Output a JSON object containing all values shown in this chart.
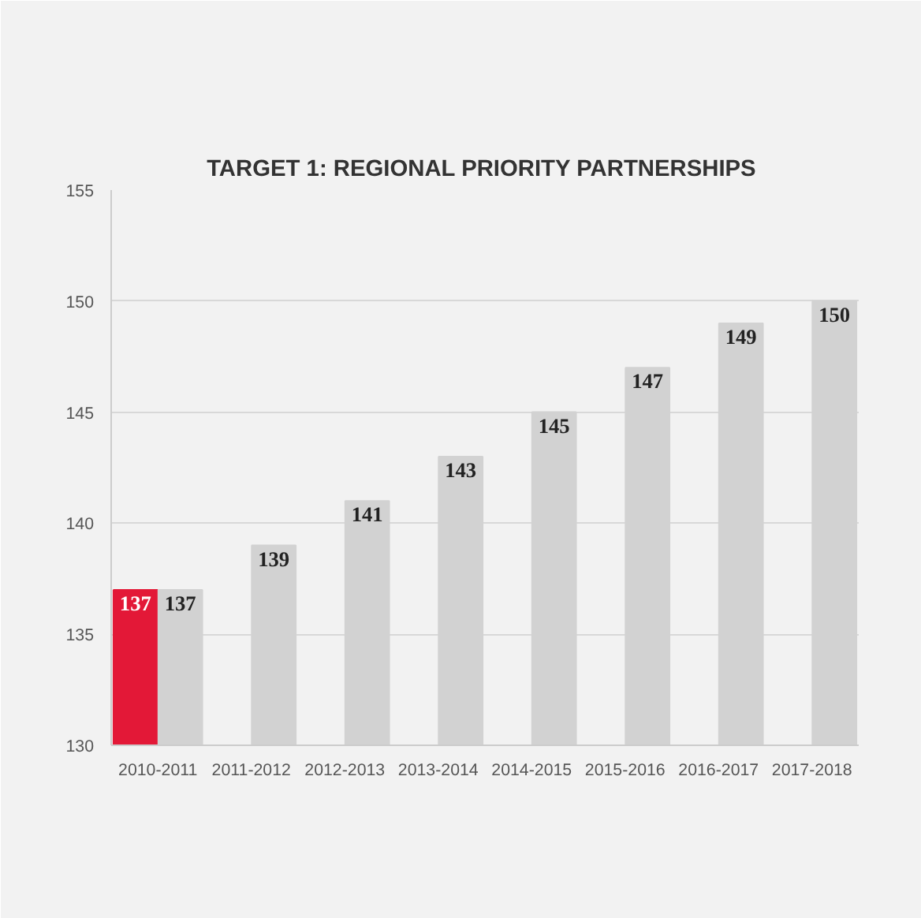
{
  "chart_data": {
    "type": "bar",
    "title": "TARGET 1:  REGIONAL PRIORITY PARTNERSHIPS",
    "categories": [
      "2010-2011",
      "2011-2012",
      "2012-2013",
      "2013-2014",
      "2014-2015",
      "2015-2016",
      "2016-2017",
      "2017-2018"
    ],
    "series": [
      {
        "color": "#e31837",
        "values": [
          137,
          null,
          null,
          null,
          null,
          null,
          null,
          null
        ]
      },
      {
        "color": "#d2d2d2",
        "values": [
          137,
          139,
          141,
          143,
          145,
          147,
          149,
          150
        ]
      }
    ],
    "ylim": [
      130,
      155
    ],
    "yticks": [
      130,
      135,
      140,
      145,
      150,
      155
    ],
    "grid": "y",
    "data_labels": true
  }
}
